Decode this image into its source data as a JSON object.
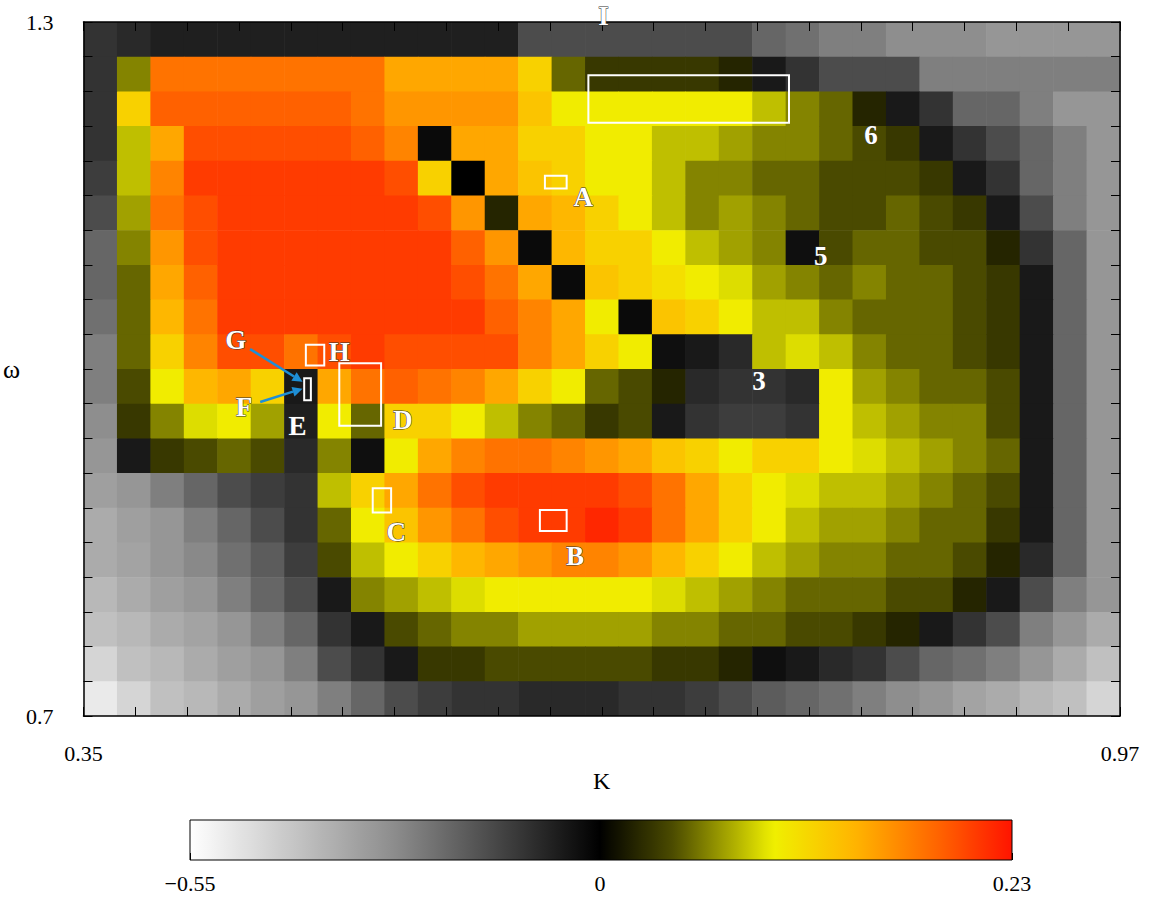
{
  "chart_data": {
    "type": "heatmap",
    "x_label": "K",
    "y_label": "ω",
    "xlim": [
      0.35,
      0.97
    ],
    "ylim": [
      0.7,
      1.3
    ],
    "xticks": [
      0.35,
      0.97
    ],
    "yticks": [
      0.7,
      1.3
    ],
    "xticks_minor": [
      0.35,
      0.381,
      0.412,
      0.443,
      0.474,
      0.505,
      0.536,
      0.567,
      0.598,
      0.629,
      0.66,
      0.691,
      0.722,
      0.753,
      0.784,
      0.815,
      0.846,
      0.877,
      0.908,
      0.939,
      0.97
    ],
    "yticks_minor": [
      0.7,
      0.73,
      0.76,
      0.79,
      0.82,
      0.85,
      0.88,
      0.91,
      0.94,
      0.97,
      1,
      1.03,
      1.06,
      1.09,
      1.12,
      1.15,
      1.18,
      1.21,
      1.24,
      1.27,
      1.3
    ],
    "cells": {
      "x": [
        0.36,
        0.38,
        0.4,
        0.42,
        0.44,
        0.46,
        0.48,
        0.5,
        0.52,
        0.54,
        0.56,
        0.58,
        0.6,
        0.62,
        0.64,
        0.66,
        0.68,
        0.7,
        0.72,
        0.74,
        0.76,
        0.78,
        0.8,
        0.82,
        0.84,
        0.86,
        0.88,
        0.9,
        0.92,
        0.94,
        0.96
      ],
      "y": [
        1.285,
        1.255,
        1.225,
        1.195,
        1.165,
        1.135,
        1.105,
        1.075,
        1.045,
        1.015,
        0.985,
        0.955,
        0.925,
        0.895,
        0.865,
        0.835,
        0.805,
        0.775,
        0.745,
        0.715
      ],
      "values": [
        [
          -0.1,
          -0.08,
          -0.06,
          -0.06,
          -0.06,
          -0.06,
          -0.06,
          -0.06,
          -0.06,
          -0.06,
          -0.06,
          -0.06,
          -0.06,
          -0.15,
          -0.15,
          -0.15,
          -0.15,
          -0.15,
          -0.15,
          -0.15,
          -0.2,
          -0.22,
          -0.25,
          -0.25,
          -0.28,
          -0.28,
          -0.28,
          -0.3,
          -0.3,
          -0.3,
          -0.3
        ],
        [
          -0.1,
          0.06,
          0.18,
          0.18,
          0.18,
          0.18,
          0.18,
          0.18,
          0.18,
          0.15,
          0.15,
          0.15,
          0.15,
          0.12,
          0.05,
          0.03,
          0.03,
          0.03,
          0.03,
          0.02,
          -0.05,
          -0.1,
          -0.15,
          -0.15,
          -0.15,
          -0.25,
          -0.25,
          -0.25,
          -0.25,
          -0.25,
          -0.25
        ],
        [
          -0.1,
          0.12,
          0.19,
          0.19,
          0.19,
          0.19,
          0.19,
          0.19,
          0.18,
          0.16,
          0.16,
          0.16,
          0.16,
          0.13,
          0.1,
          0.1,
          0.1,
          0.1,
          0.1,
          0.1,
          0.08,
          0.06,
          0.05,
          0.02,
          -0.05,
          -0.1,
          -0.2,
          -0.2,
          -0.25,
          -0.3,
          -0.3
        ],
        [
          -0.1,
          0.08,
          0.15,
          0.2,
          0.2,
          0.2,
          0.2,
          0.2,
          0.19,
          0.17,
          -0.02,
          0.15,
          0.15,
          0.12,
          0.12,
          0.1,
          0.1,
          0.08,
          0.08,
          0.07,
          0.06,
          0.06,
          0.05,
          0.04,
          0.03,
          -0.05,
          -0.1,
          -0.15,
          -0.2,
          -0.25,
          -0.3
        ],
        [
          -0.12,
          0.08,
          0.17,
          0.21,
          0.21,
          0.21,
          0.21,
          0.21,
          0.21,
          0.2,
          0.12,
          0,
          0.15,
          0.13,
          0.12,
          0.1,
          0.1,
          0.08,
          0.06,
          0.06,
          0.05,
          0.05,
          0.04,
          0.04,
          0.04,
          0.03,
          -0.05,
          -0.1,
          -0.2,
          -0.25,
          -0.3
        ],
        [
          -0.15,
          0.07,
          0.18,
          0.2,
          0.21,
          0.21,
          0.21,
          0.21,
          0.21,
          0.21,
          0.2,
          0.16,
          0.02,
          0.15,
          0.14,
          0.12,
          0.1,
          0.08,
          0.06,
          0.07,
          0.06,
          0.05,
          0.04,
          0.04,
          0.05,
          0.04,
          0.03,
          -0.05,
          -0.15,
          -0.25,
          -0.3
        ],
        [
          -0.2,
          0.06,
          0.16,
          0.2,
          0.21,
          0.21,
          0.21,
          0.21,
          0.21,
          0.21,
          0.21,
          0.19,
          0.16,
          -0.02,
          0.14,
          0.12,
          0.12,
          0.1,
          0.08,
          0.07,
          0.06,
          -0.03,
          0.04,
          0.05,
          0.05,
          0.04,
          0.04,
          0.02,
          -0.1,
          -0.2,
          -0.3
        ],
        [
          -0.2,
          0.05,
          0.15,
          0.19,
          0.21,
          0.21,
          0.21,
          0.21,
          0.21,
          0.21,
          0.21,
          0.2,
          0.18,
          0.15,
          -0.02,
          0.13,
          0.12,
          0.11,
          0.1,
          0.09,
          0.07,
          0.06,
          0.05,
          0.06,
          0.05,
          0.05,
          0.04,
          0.03,
          -0.05,
          -0.2,
          -0.3
        ],
        [
          -0.22,
          0.05,
          0.14,
          0.18,
          0.21,
          0.21,
          0.21,
          0.21,
          0.21,
          0.21,
          0.21,
          0.21,
          0.19,
          0.17,
          0.15,
          0.1,
          -0.02,
          0.13,
          0.12,
          0.1,
          0.08,
          0.08,
          0.06,
          0.05,
          0.05,
          0.05,
          0.04,
          0.03,
          -0.05,
          -0.2,
          -0.3
        ],
        [
          -0.25,
          0.05,
          0.12,
          0.17,
          0.2,
          0.2,
          0.18,
          0.2,
          0.21,
          0.2,
          0.2,
          0.2,
          0.2,
          0.17,
          0.15,
          0.12,
          0.1,
          -0.03,
          -0.05,
          -0.08,
          0.08,
          0.09,
          0.08,
          0.06,
          0.05,
          0.05,
          0.04,
          0.03,
          -0.05,
          -0.2,
          -0.3
        ],
        [
          -0.25,
          0.04,
          0.1,
          0.14,
          0.15,
          0.12,
          -0.05,
          0.15,
          0.18,
          0.19,
          0.18,
          0.17,
          0.15,
          0.12,
          0.1,
          0.05,
          0.04,
          0.02,
          -0.08,
          -0.1,
          -0.1,
          -0.08,
          0.1,
          0.07,
          0.06,
          0.05,
          0.05,
          0.04,
          -0.05,
          -0.2,
          -0.3
        ],
        [
          -0.28,
          0.03,
          0.06,
          0.09,
          0.1,
          0.07,
          -0.06,
          0.1,
          0.05,
          0.12,
          0.12,
          0.1,
          0.08,
          0.06,
          0.05,
          0.03,
          0.04,
          -0.05,
          -0.1,
          -0.12,
          -0.12,
          -0.1,
          0.1,
          0.08,
          0.07,
          0.06,
          0.06,
          0.04,
          -0.05,
          -0.2,
          -0.3
        ],
        [
          -0.3,
          -0.05,
          0.03,
          0.04,
          0.05,
          0.04,
          -0.08,
          0.06,
          -0.03,
          0.1,
          0.15,
          0.17,
          0.18,
          0.18,
          0.17,
          0.16,
          0.15,
          0.13,
          0.12,
          0.1,
          0.12,
          0.12,
          0.1,
          0.09,
          0.08,
          0.07,
          0.06,
          0.05,
          -0.05,
          -0.2,
          -0.3
        ],
        [
          -0.32,
          -0.3,
          -0.25,
          -0.2,
          -0.15,
          -0.12,
          -0.1,
          0.08,
          0.12,
          0.15,
          0.18,
          0.2,
          0.21,
          0.21,
          0.21,
          0.21,
          0.2,
          0.18,
          0.15,
          0.12,
          0.1,
          0.09,
          0.08,
          0.08,
          0.07,
          0.06,
          0.05,
          0.04,
          -0.05,
          -0.2,
          -0.3
        ],
        [
          -0.35,
          -0.32,
          -0.3,
          -0.25,
          -0.2,
          -0.15,
          -0.1,
          0.05,
          0.1,
          0.13,
          0.16,
          0.18,
          0.2,
          0.21,
          0.21,
          0.22,
          0.21,
          0.18,
          0.15,
          0.12,
          0.1,
          0.08,
          0.07,
          0.07,
          0.06,
          0.05,
          0.05,
          0.03,
          -0.05,
          -0.2,
          -0.3
        ],
        [
          -0.35,
          -0.33,
          -0.3,
          -0.27,
          -0.22,
          -0.18,
          -0.12,
          0.04,
          0.08,
          0.1,
          0.12,
          0.14,
          0.15,
          0.16,
          0.17,
          0.17,
          0.16,
          0.14,
          0.12,
          0.1,
          0.08,
          0.07,
          0.06,
          0.06,
          0.05,
          0.05,
          0.04,
          0.02,
          -0.08,
          -0.2,
          -0.3
        ],
        [
          -0.38,
          -0.35,
          -0.32,
          -0.3,
          -0.25,
          -0.2,
          -0.15,
          -0.05,
          0.06,
          0.07,
          0.08,
          0.09,
          0.1,
          0.1,
          0.1,
          0.1,
          0.1,
          0.09,
          0.08,
          0.07,
          0.06,
          0.05,
          0.05,
          0.05,
          0.04,
          0.04,
          0.02,
          -0.05,
          -0.15,
          -0.25,
          -0.3
        ],
        [
          -0.4,
          -0.38,
          -0.35,
          -0.33,
          -0.3,
          -0.25,
          -0.2,
          -0.1,
          -0.05,
          0.04,
          0.05,
          0.06,
          0.06,
          0.07,
          0.07,
          0.07,
          0.07,
          0.06,
          0.06,
          0.05,
          0.05,
          0.04,
          0.04,
          0.03,
          0.02,
          -0.05,
          -0.1,
          -0.15,
          -0.25,
          -0.3,
          -0.35
        ],
        [
          -0.45,
          -0.4,
          -0.38,
          -0.35,
          -0.32,
          -0.3,
          -0.25,
          -0.15,
          -0.1,
          -0.05,
          0.03,
          0.03,
          0.04,
          0.04,
          0.04,
          0.04,
          0.04,
          0.03,
          0.03,
          0.02,
          -0.03,
          -0.05,
          -0.08,
          -0.1,
          -0.15,
          -0.2,
          -0.22,
          -0.25,
          -0.3,
          -0.35,
          -0.4
        ],
        [
          -0.5,
          -0.45,
          -0.4,
          -0.38,
          -0.35,
          -0.32,
          -0.3,
          -0.25,
          -0.2,
          -0.15,
          -0.12,
          -0.1,
          -0.1,
          -0.08,
          -0.08,
          -0.08,
          -0.1,
          -0.1,
          -0.12,
          -0.15,
          -0.18,
          -0.2,
          -0.22,
          -0.25,
          -0.28,
          -0.3,
          -0.33,
          -0.35,
          -0.38,
          -0.4,
          -0.45
        ]
      ]
    },
    "colorbar": {
      "range": [
        -0.55,
        0.23
      ],
      "ticks": [
        {
          "value": -0.55,
          "label": "−0.55"
        },
        0,
        0.23
      ]
    },
    "labels": [
      {
        "text": "I",
        "x": 0.661,
        "y": 1.305
      },
      {
        "text": "6",
        "x": 0.821,
        "y": 1.202
      },
      {
        "text": "A",
        "x": 0.649,
        "y": 1.149
      },
      {
        "text": "5",
        "x": 0.791,
        "y": 1.098
      },
      {
        "text": "3",
        "x": 0.754,
        "y": 0.99
      },
      {
        "text": "H",
        "x": 0.503,
        "y": 1.015
      },
      {
        "text": "G",
        "x": 0.441,
        "y": 1.025,
        "arrow_to": [
          0.481,
          0.989
        ]
      },
      {
        "text": "F",
        "x": 0.446,
        "y": 0.967,
        "arrow_to": [
          0.481,
          0.983
        ]
      },
      {
        "text": "E",
        "x": 0.478,
        "y": 0.951
      },
      {
        "text": "D",
        "x": 0.541,
        "y": 0.956
      },
      {
        "text": "C",
        "x": 0.537,
        "y": 0.859
      },
      {
        "text": "B",
        "x": 0.644,
        "y": 0.838
      }
    ],
    "boxes": [
      {
        "x": [
          0.652,
          0.772
        ],
        "y": [
          1.213,
          1.254
        ]
      },
      {
        "x": [
          0.626,
          0.639
        ],
        "y": [
          1.156,
          1.167
        ]
      },
      {
        "x": [
          0.483,
          0.494
        ],
        "y": [
          1.003,
          1.021
        ]
      },
      {
        "x": [
          0.482,
          0.486
        ],
        "y": [
          0.973,
          0.992
        ]
      },
      {
        "x": [
          0.503,
          0.528
        ],
        "y": [
          0.951,
          1.005
        ]
      },
      {
        "x": [
          0.523,
          0.534
        ],
        "y": [
          0.876,
          0.897
        ]
      },
      {
        "x": [
          0.623,
          0.639
        ],
        "y": [
          0.86,
          0.878
        ]
      }
    ]
  }
}
